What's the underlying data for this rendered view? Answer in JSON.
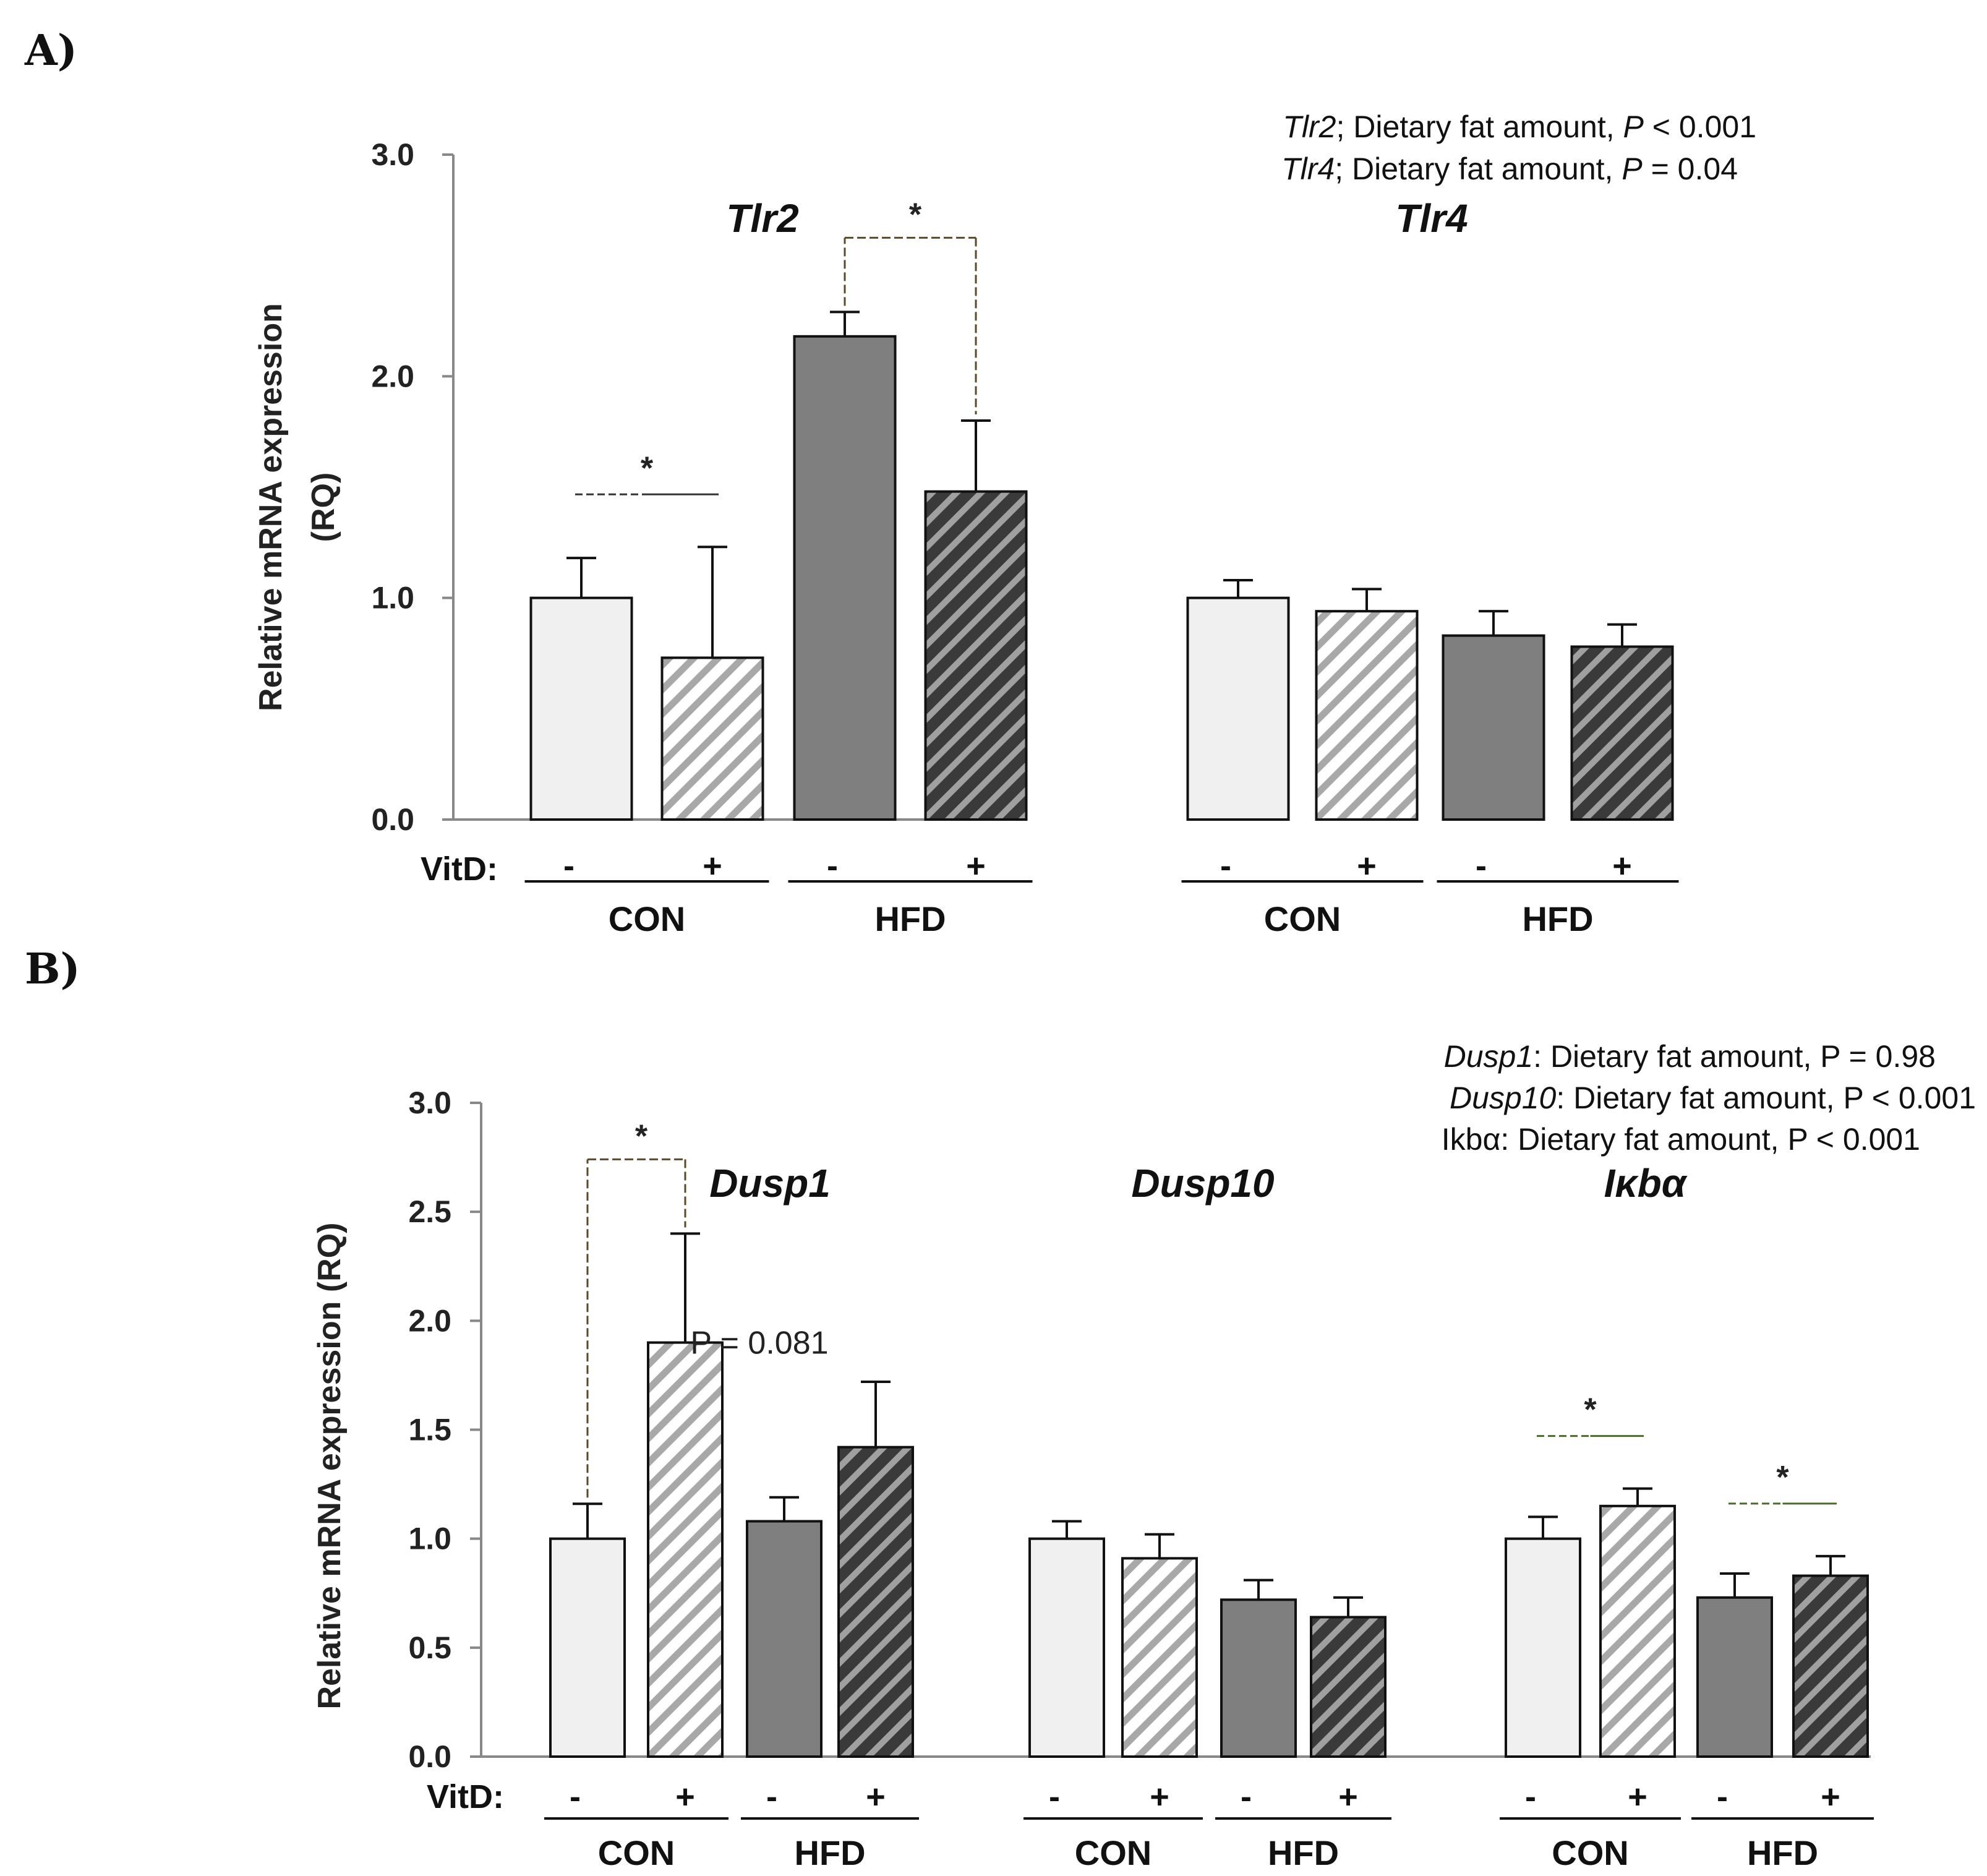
{
  "chart_data": [
    {
      "panel": "A)",
      "type": "bar",
      "ylabel": [
        "Relative mRNA expression",
        "(RQ)"
      ],
      "ylim": [
        0,
        3
      ],
      "yticks": [
        "0.0",
        "1.0",
        "2.0",
        "3.0"
      ],
      "vitd_label": "VitD:",
      "annotations": [
        {
          "gene": "Tlr2",
          "text": "; Dietary fat amount, ",
          "p": "P",
          "rest": " < 0.001"
        },
        {
          "gene": "Tlr4",
          "text": "; Dietary fat amount, ",
          "p": "P",
          "rest": " = 0.04"
        }
      ],
      "genes": [
        {
          "name": "Tlr2",
          "bars": [
            {
              "group": "CON",
              "vitd": "-",
              "value": 1.0,
              "error": 0.18,
              "style": "light"
            },
            {
              "group": "CON",
              "vitd": "+",
              "value": 0.73,
              "error": 0.5,
              "style": "light-hatch"
            },
            {
              "group": "HFD",
              "vitd": "-",
              "value": 2.18,
              "error": 0.11,
              "style": "dark"
            },
            {
              "group": "HFD",
              "vitd": "+",
              "value": 1.48,
              "error": 0.32,
              "style": "dark-hatch"
            }
          ],
          "significance": [
            {
              "label": "*",
              "from": 0,
              "to": 1,
              "kind": "line"
            },
            {
              "label": "*",
              "from": 2,
              "to": 3,
              "kind": "bracket"
            }
          ]
        },
        {
          "name": "Tlr4",
          "bars": [
            {
              "group": "CON",
              "vitd": "-",
              "value": 1.0,
              "error": 0.08,
              "style": "light"
            },
            {
              "group": "CON",
              "vitd": "+",
              "value": 0.94,
              "error": 0.1,
              "style": "light-hatch"
            },
            {
              "group": "HFD",
              "vitd": "-",
              "value": 0.83,
              "error": 0.11,
              "style": "dark"
            },
            {
              "group": "HFD",
              "vitd": "+",
              "value": 0.78,
              "error": 0.1,
              "style": "dark-hatch"
            }
          ],
          "significance": []
        }
      ]
    },
    {
      "panel": "B)",
      "type": "bar",
      "ylabel": [
        "Relative mRNA expression (RQ)"
      ],
      "ylim": [
        0,
        3
      ],
      "yticks": [
        "0.0",
        "0.5",
        "1.0",
        "1.5",
        "2.0",
        "2.5",
        "3.0"
      ],
      "vitd_label": "VitD:",
      "annotations": [
        {
          "gene": "Dusp1",
          "text": ": Dietary fat amount, P = 0.98"
        },
        {
          "gene": "Dusp10",
          "text": ": Dietary fat amount, P < 0.001"
        },
        {
          "gene": "",
          "text": "Ikbα: Dietary fat amount, P < 0.001"
        }
      ],
      "genes": [
        {
          "name": "Dusp1",
          "pvalue_note": "P = 0.081",
          "bars": [
            {
              "group": "CON",
              "vitd": "-",
              "value": 1.0,
              "error": 0.16,
              "style": "light"
            },
            {
              "group": "CON",
              "vitd": "+",
              "value": 1.9,
              "error": 0.5,
              "style": "light-hatch"
            },
            {
              "group": "HFD",
              "vitd": "-",
              "value": 1.08,
              "error": 0.11,
              "style": "dark"
            },
            {
              "group": "HFD",
              "vitd": "+",
              "value": 1.42,
              "error": 0.3,
              "style": "dark-hatch"
            }
          ],
          "significance": [
            {
              "label": "*",
              "from": 0,
              "to": 1,
              "kind": "bracket"
            }
          ]
        },
        {
          "name": "Dusp10",
          "bars": [
            {
              "group": "CON",
              "vitd": "-",
              "value": 1.0,
              "error": 0.08,
              "style": "light"
            },
            {
              "group": "CON",
              "vitd": "+",
              "value": 0.91,
              "error": 0.11,
              "style": "light-hatch"
            },
            {
              "group": "HFD",
              "vitd": "-",
              "value": 0.72,
              "error": 0.09,
              "style": "dark"
            },
            {
              "group": "HFD",
              "vitd": "+",
              "value": 0.64,
              "error": 0.09,
              "style": "dark-hatch"
            }
          ],
          "significance": []
        },
        {
          "name": "Iκbα",
          "bars": [
            {
              "group": "CON",
              "vitd": "-",
              "value": 1.0,
              "error": 0.1,
              "style": "light"
            },
            {
              "group": "CON",
              "vitd": "+",
              "value": 1.15,
              "error": 0.08,
              "style": "light-hatch"
            },
            {
              "group": "HFD",
              "vitd": "-",
              "value": 0.73,
              "error": 0.11,
              "style": "dark"
            },
            {
              "group": "HFD",
              "vitd": "+",
              "value": 0.83,
              "error": 0.09,
              "style": "dark-hatch"
            }
          ],
          "significance": [
            {
              "label": "*",
              "from": 0,
              "to": 1,
              "kind": "line-green"
            },
            {
              "label": "*",
              "from": 2,
              "to": 3,
              "kind": "line-green"
            }
          ]
        }
      ]
    }
  ],
  "colors": {
    "light": "#f0f0f0",
    "light_hatch_stroke": "#a8a8a8",
    "dark": "#7f7f7f",
    "dark_hatch_bg": "#4a4a4a",
    "dark_hatch_stroke": "#a0a0a0",
    "bracket": "#5a4a2a",
    "green": "#4a6b2a"
  }
}
